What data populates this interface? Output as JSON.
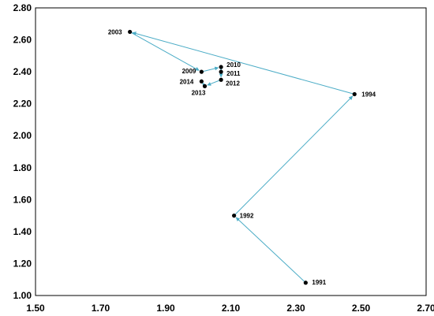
{
  "chart_data": {
    "type": "scatter",
    "title": "",
    "xlabel": "",
    "ylabel": "",
    "xlim": [
      1.5,
      2.7
    ],
    "ylim": [
      1.0,
      2.8
    ],
    "grid": false,
    "x_ticks": [
      "1.50",
      "1.70",
      "1.90",
      "2.10",
      "2.30",
      "2.50",
      "2.70"
    ],
    "y_ticks": [
      "1.00",
      "1.20",
      "1.40",
      "1.60",
      "1.80",
      "2.00",
      "2.20",
      "2.40",
      "2.60",
      "2.80"
    ],
    "line_color": "#4bacc6",
    "marker_color": "#000000",
    "points": [
      {
        "label": "1991",
        "x": 2.33,
        "y": 1.08
      },
      {
        "label": "1992",
        "x": 2.11,
        "y": 1.5
      },
      {
        "label": "1994",
        "x": 2.48,
        "y": 2.26
      },
      {
        "label": "2003",
        "x": 1.79,
        "y": 2.65
      },
      {
        "label": "2009",
        "x": 2.01,
        "y": 2.4
      },
      {
        "label": "2010",
        "x": 2.07,
        "y": 2.43
      },
      {
        "label": "2011",
        "x": 2.07,
        "y": 2.4
      },
      {
        "label": "2012",
        "x": 2.07,
        "y": 2.35
      },
      {
        "label": "2013",
        "x": 2.02,
        "y": 2.31
      },
      {
        "label": "2014",
        "x": 2.01,
        "y": 2.34
      }
    ]
  }
}
